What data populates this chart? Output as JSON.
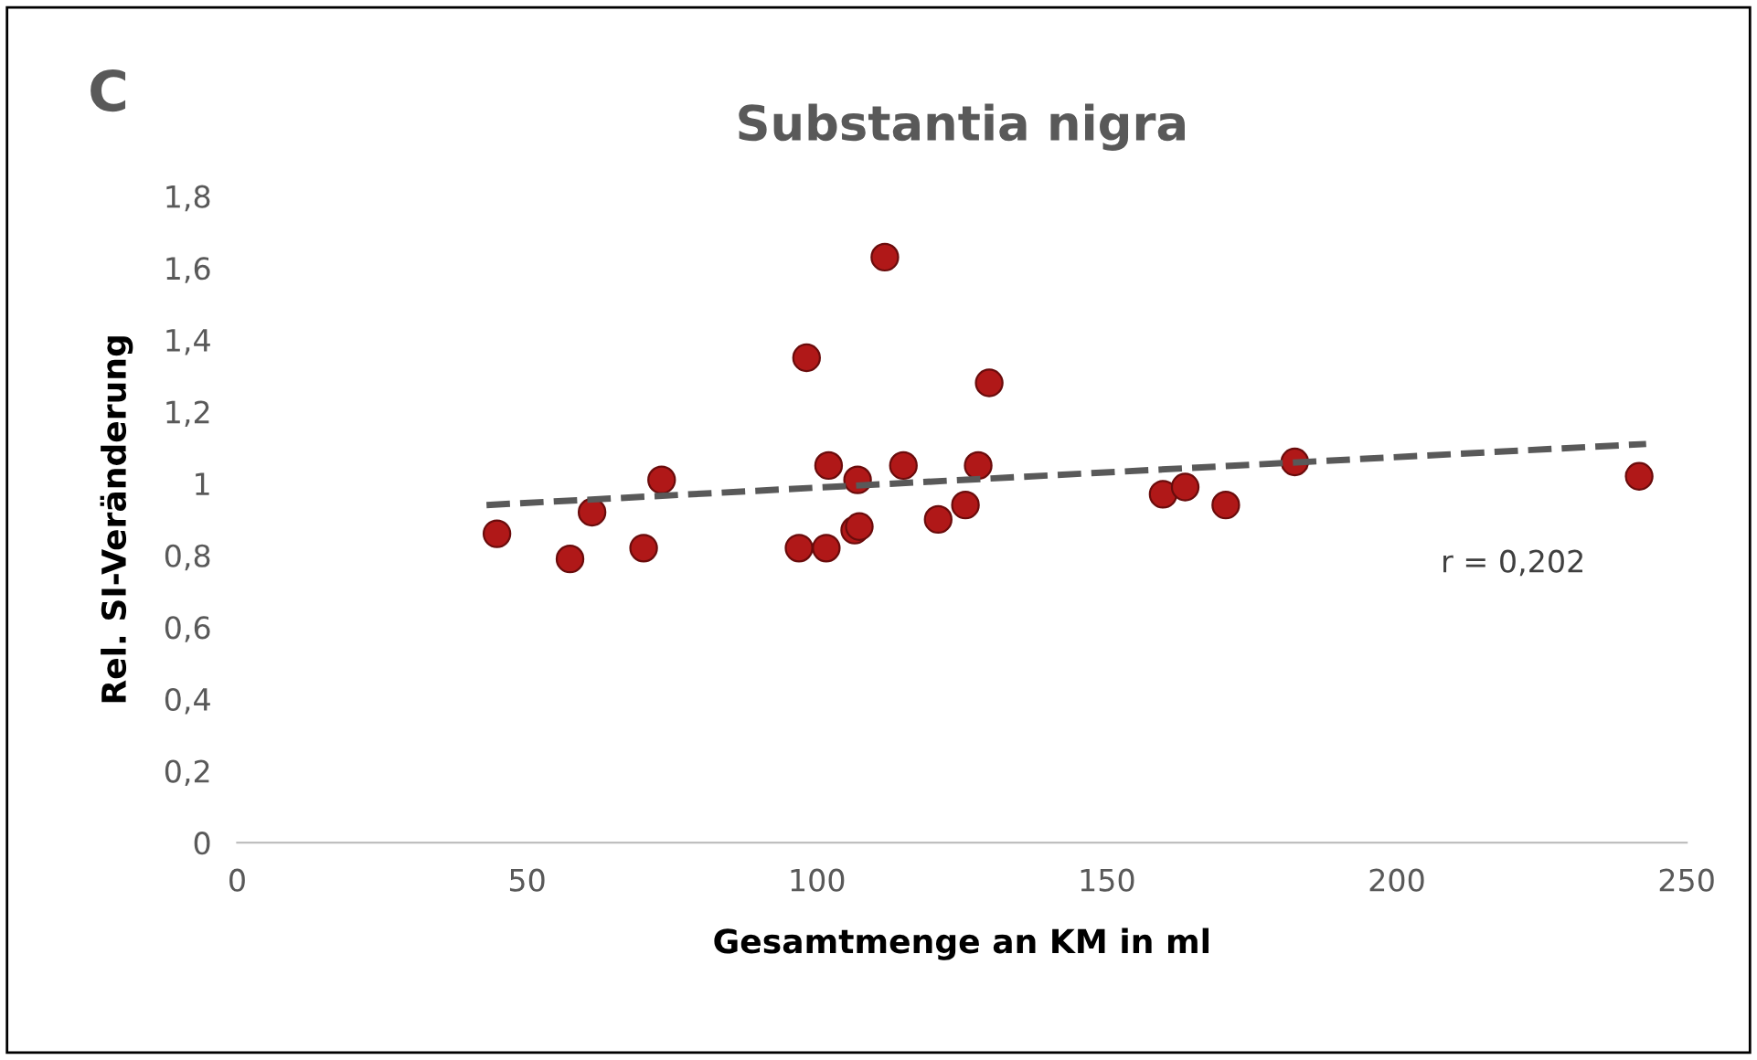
{
  "chart_data": {
    "type": "scatter",
    "title": "Substantia nigra",
    "xlabel": "Gesamtmenge an KM in ml",
    "ylabel": "Rel. SI-Veränderung",
    "annotations": [
      "C",
      "r = 0,202"
    ],
    "xlim": [
      0,
      250
    ],
    "xticks": [
      0,
      50,
      100,
      150,
      200,
      250
    ],
    "ylim": [
      0,
      1.8
    ],
    "yticks": [
      0,
      {
        "value": 0.2,
        "label": "0,2"
      },
      {
        "value": 0.4,
        "label": "0,4"
      },
      {
        "value": 0.6,
        "label": "0,6"
      },
      {
        "value": 0.8,
        "label": "0,8"
      },
      1,
      {
        "value": 1.2,
        "label": "1,2"
      },
      {
        "value": 1.4,
        "label": "1,4"
      },
      {
        "value": 1.6,
        "label": "1,6"
      },
      {
        "value": 1.8,
        "label": "1,8"
      }
    ],
    "grid": false,
    "legend": false,
    "series": [
      {
        "color": "#b01818",
        "marker": "circle",
        "x": [
          44.8,
          57.4,
          61.2,
          70.1,
          73.2,
          96.9,
          98.2,
          101.6,
          102,
          106.5,
          107.3,
          107,
          111.7,
          114.9,
          120.9,
          125.6,
          127.8,
          129.7,
          159.7,
          163.5,
          170.5,
          182.4,
          241.8
        ],
        "values": [
          0.86,
          0.79,
          0.92,
          0.82,
          1.01,
          0.82,
          1.35,
          0.82,
          1.05,
          0.87,
          0.88,
          1.01,
          1.63,
          1.05,
          0.9,
          0.94,
          1.05,
          1.28,
          0.97,
          0.99,
          0.94,
          1.06,
          1.02
        ]
      },
      {
        "type": "line",
        "color": "#595959",
        "marker": "none",
        "line_style": "dashed",
        "x": [
          43,
          243
        ],
        "values": [
          0.94,
          1.11
        ]
      }
    ]
  }
}
